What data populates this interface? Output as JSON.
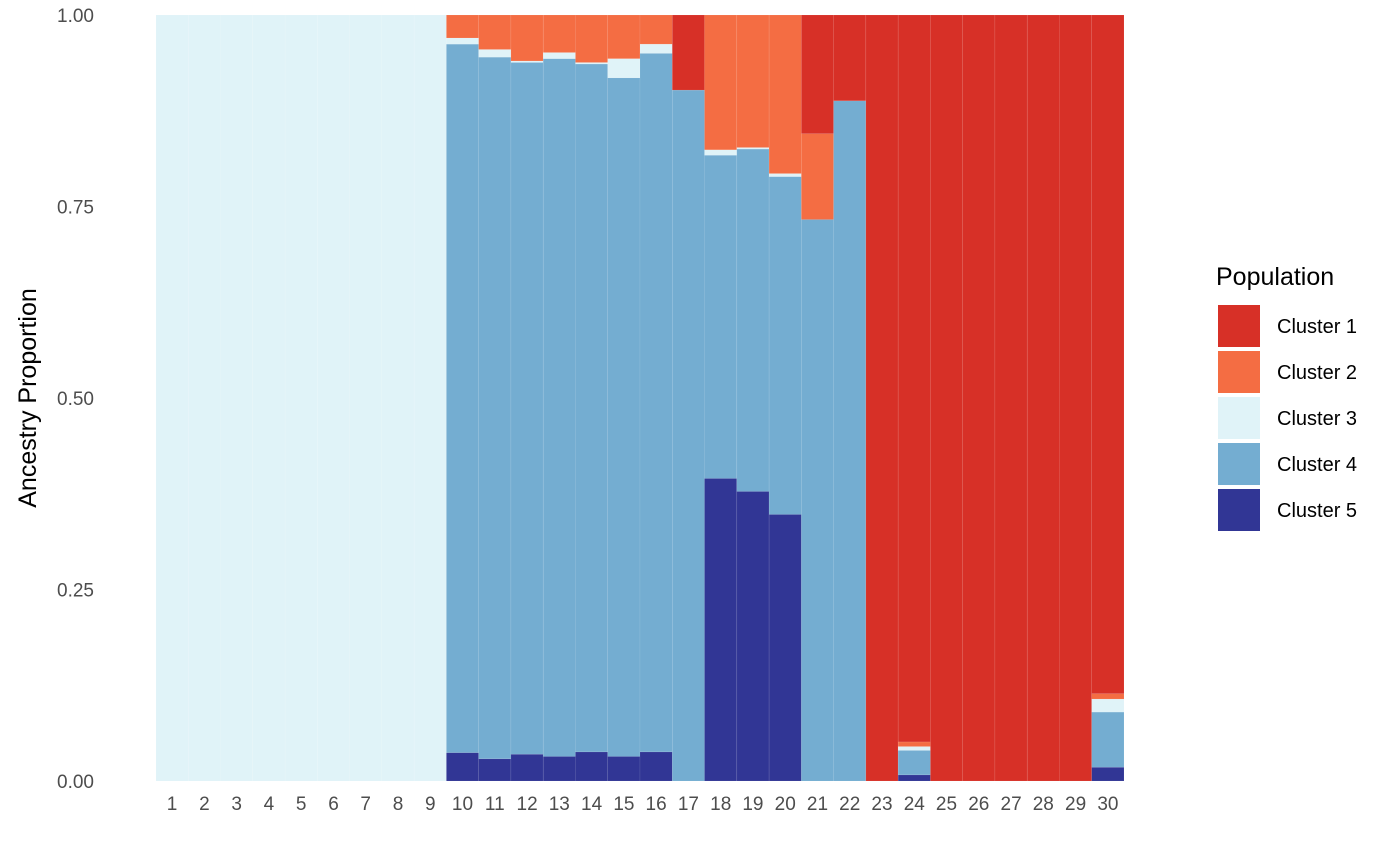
{
  "chart_data": {
    "type": "bar",
    "stacked": true,
    "title": "",
    "xlabel": "",
    "ylabel": "Ancestry Proportion",
    "ylim": [
      0,
      1
    ],
    "yticks": [
      "0.00",
      "0.25",
      "0.50",
      "0.75",
      "1.00"
    ],
    "categories": [
      "1",
      "2",
      "3",
      "4",
      "5",
      "6",
      "7",
      "8",
      "9",
      "10",
      "11",
      "12",
      "13",
      "14",
      "15",
      "16",
      "17",
      "18",
      "19",
      "20",
      "21",
      "22",
      "23",
      "24",
      "25",
      "26",
      "27",
      "28",
      "29",
      "30"
    ],
    "grid": false,
    "legend": {
      "title": "Population",
      "position": "right"
    },
    "series": [
      {
        "name": "Cluster 5",
        "color": "#313695",
        "values": [
          0,
          0,
          0,
          0,
          0,
          0,
          0,
          0,
          0,
          0.037,
          0.029,
          0.035,
          0.032,
          0.038,
          0.032,
          0.038,
          0,
          0.395,
          0.378,
          0.348,
          0,
          0,
          0,
          0.008,
          0,
          0,
          0,
          0,
          0,
          0.018
        ]
      },
      {
        "name": "Cluster 4",
        "color": "#74ADD1",
        "values": [
          0,
          0,
          0,
          0,
          0,
          0,
          0,
          0,
          0,
          0.925,
          0.916,
          0.903,
          0.911,
          0.898,
          0.886,
          0.912,
          0.902,
          0.422,
          0.447,
          0.441,
          0.733,
          0.888,
          0,
          0.032,
          0,
          0,
          0,
          0,
          0,
          0.072
        ]
      },
      {
        "name": "Cluster 3",
        "color": "#E0F3F8",
        "values": [
          1,
          1,
          1,
          1,
          1,
          1,
          1,
          1,
          1,
          0.008,
          0.01,
          0.002,
          0.008,
          0.002,
          0.025,
          0.012,
          0,
          0.007,
          0.002,
          0.004,
          0,
          0,
          0,
          0.005,
          0,
          0,
          0,
          0,
          0,
          0.017
        ]
      },
      {
        "name": "Cluster 2",
        "color": "#F46D43",
        "values": [
          0,
          0,
          0,
          0,
          0,
          0,
          0,
          0,
          0,
          0.03,
          0.045,
          0.06,
          0.049,
          0.062,
          0.057,
          0.038,
          0,
          0.176,
          0.173,
          0.207,
          0.112,
          0,
          0,
          0.006,
          0,
          0,
          0,
          0,
          0,
          0.007
        ]
      },
      {
        "name": "Cluster 1",
        "color": "#D73027",
        "values": [
          0,
          0,
          0,
          0,
          0,
          0,
          0,
          0,
          0,
          0,
          0,
          0,
          0,
          0,
          0,
          0,
          0.098,
          0,
          0,
          0,
          0.155,
          0.112,
          1,
          0.949,
          1,
          1,
          1,
          1,
          1,
          0.886
        ]
      }
    ],
    "legend_order": [
      "Cluster 1",
      "Cluster 2",
      "Cluster 3",
      "Cluster 4",
      "Cluster 5"
    ]
  }
}
